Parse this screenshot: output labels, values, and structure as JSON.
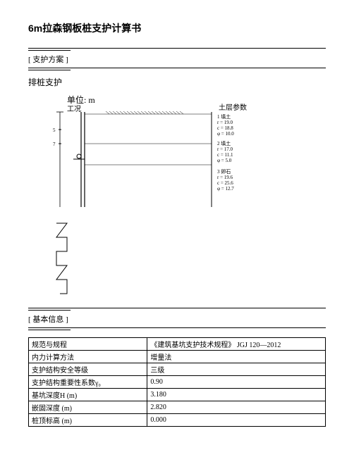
{
  "title": "6m拉森钢板桩支护计算书",
  "section1": {
    "label": "[ 支护方案 ]",
    "subtitle": "排桩支护"
  },
  "diagram": {
    "unit_label": "单位: m",
    "sub_label": "工况",
    "soil_label": "土层参数",
    "soil_layers": [
      {
        "l1": "1 填土",
        "l2": "r = 19.0",
        "l3": "c = 18.8",
        "l4": "φ = 10.0"
      },
      {
        "l1": "2 填土",
        "l2": "r = 17.0",
        "l3": "c = 11.1",
        "l4": "φ = 5.0"
      },
      {
        "l1": "3 卵石",
        "l2": "r = 19.6",
        "l3": "c = 25.6",
        "l4": "φ = 12.7"
      }
    ],
    "marks": [
      "5",
      "7"
    ]
  },
  "section2": {
    "label": "[ 基本信息 ]"
  },
  "table": {
    "rows": [
      {
        "label": "规范与规程",
        "value": "《建筑基坑支护技术规程》 JGJ 120—2012"
      },
      {
        "label": "内力计算方法",
        "value": "增量法"
      },
      {
        "label": "支护结构安全等级",
        "value": "三级"
      },
      {
        "label": "支护结构重要性系数γ₀",
        "value": "0.90"
      },
      {
        "label": "基坑深度H (m)",
        "value": "3.180"
      },
      {
        "label": "嵌固深度 (m)",
        "value": "2.820"
      },
      {
        "label": "桩顶标高 (m)",
        "value": "0.000"
      }
    ]
  }
}
